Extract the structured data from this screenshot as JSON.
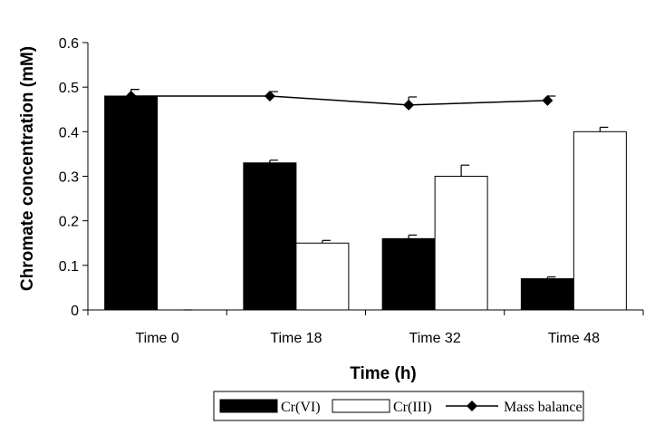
{
  "chart_data": {
    "type": "bar",
    "title": "",
    "xlabel": "Time (h)",
    "ylabel": "Chromate concentration (mM)",
    "categories": [
      "Time 0",
      "Time 18",
      "Time 32",
      "Time 48"
    ],
    "ylim": [
      0,
      0.6
    ],
    "yticks": [
      0,
      0.1,
      0.2,
      0.3,
      0.4,
      0.5,
      0.6
    ],
    "ytick_labels": [
      "0",
      "0.1",
      "0.2",
      "0.3",
      "0.4",
      "0.5",
      "0.6"
    ],
    "grid": false,
    "legend_position": "bottom",
    "series": [
      {
        "name": "Cr(VI)",
        "kind": "bar",
        "color": "#000000",
        "values": [
          0.48,
          0.33,
          0.16,
          0.07
        ],
        "errors": [
          0.015,
          0.006,
          0.008,
          0.004
        ]
      },
      {
        "name": "Cr(III)",
        "kind": "bar",
        "color": "#ffffff",
        "values": [
          0.0,
          0.15,
          0.3,
          0.4
        ],
        "errors": [
          0.0,
          0.006,
          0.025,
          0.01
        ]
      },
      {
        "name": "Mass balance",
        "kind": "line",
        "marker": "diamond",
        "color": "#000000",
        "values": [
          0.48,
          0.48,
          0.46,
          0.47
        ],
        "errors": [
          0.015,
          0.01,
          0.018,
          0.01
        ]
      }
    ]
  }
}
